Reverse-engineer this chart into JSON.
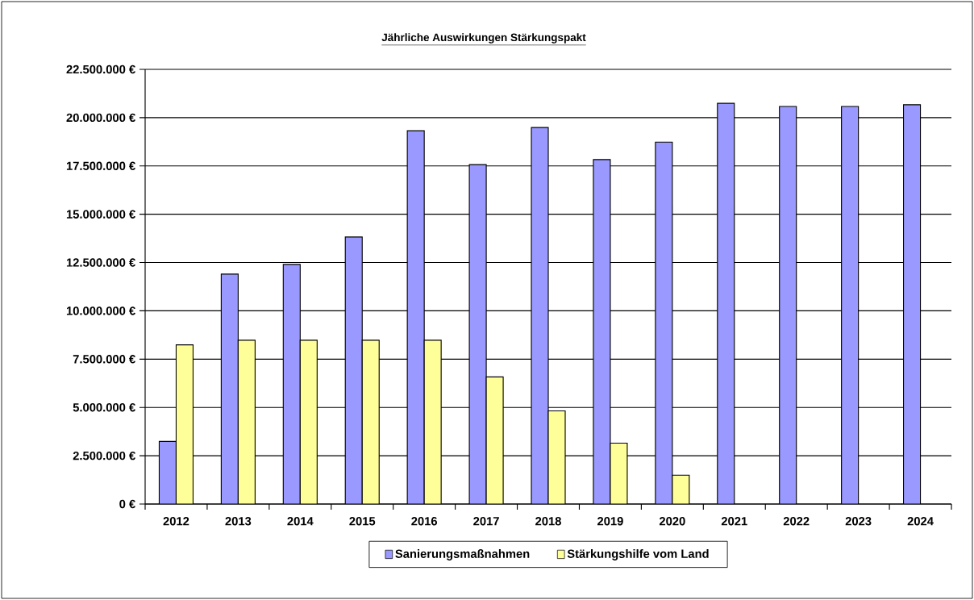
{
  "chart_data": {
    "type": "bar",
    "title": "Jährliche Auswirkungen Stärkungspakt",
    "categories": [
      "2012",
      "2013",
      "2014",
      "2015",
      "2016",
      "2017",
      "2018",
      "2019",
      "2020",
      "2021",
      "2022",
      "2023",
      "2024"
    ],
    "series": [
      {
        "name": "Sanierungsmaßnahmen",
        "color": "#9999ff",
        "values": [
          3240000,
          11900000,
          12400000,
          13820000,
          19320000,
          17570000,
          19490000,
          17830000,
          18730000,
          20740000,
          20580000,
          20580000,
          20670000
        ]
      },
      {
        "name": "Stärkungshilfe vom Land",
        "color": "#ffff99",
        "values": [
          8240000,
          8480000,
          8480000,
          8480000,
          8480000,
          6580000,
          4820000,
          3150000,
          1490000,
          null,
          null,
          null,
          null
        ]
      }
    ],
    "ylim": [
      0,
      22500000
    ],
    "yticks": [
      {
        "value": 0,
        "label": "0 €"
      },
      {
        "value": 2500000,
        "label": "2.500.000 €"
      },
      {
        "value": 5000000,
        "label": "5.000.000 €"
      },
      {
        "value": 7500000,
        "label": "7.500.000 €"
      },
      {
        "value": 10000000,
        "label": "10.000.000 €"
      },
      {
        "value": 12500000,
        "label": "12.500.000 €"
      },
      {
        "value": 15000000,
        "label": "15.000.000 €"
      },
      {
        "value": 17500000,
        "label": "17.500.000 €"
      },
      {
        "value": 20000000,
        "label": "20.000.000 €"
      },
      {
        "value": 22500000,
        "label": "22.500.000 €"
      }
    ],
    "grid": "y",
    "legend": "bottom"
  }
}
